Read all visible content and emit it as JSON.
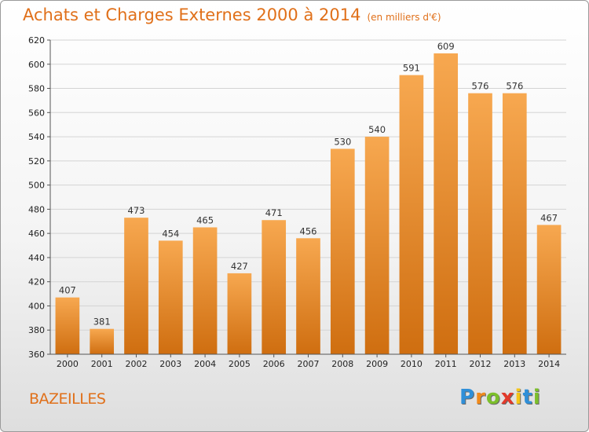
{
  "header": {
    "title": "Achats et Charges Externes 2000 à 2014",
    "subtitle": "(en milliers d'€)"
  },
  "footer": {
    "city": "BAZEILLES",
    "logo_letters": [
      {
        "ch": "P",
        "color": "#2f8fd8"
      },
      {
        "ch": "r",
        "color": "#f08a1c"
      },
      {
        "ch": "o",
        "color": "#7cbf2b"
      },
      {
        "ch": "x",
        "color": "#e23a2b"
      },
      {
        "ch": "i",
        "color": "#f5c518"
      },
      {
        "ch": "t",
        "color": "#2f8fd8"
      },
      {
        "ch": "i",
        "color": "#7cbf2b"
      }
    ]
  },
  "chart_data": {
    "type": "bar",
    "title": "Achats et Charges Externes 2000 à 2014",
    "subtitle": "(en milliers d'€)",
    "categories": [
      "2000",
      "2001",
      "2002",
      "2003",
      "2004",
      "2005",
      "2006",
      "2007",
      "2008",
      "2009",
      "2010",
      "2011",
      "2012",
      "2013",
      "2014"
    ],
    "values": [
      407,
      381,
      473,
      454,
      465,
      427,
      471,
      456,
      530,
      540,
      591,
      609,
      576,
      576,
      467
    ],
    "ylim": [
      360,
      620
    ],
    "yticks": [
      360,
      380,
      400,
      420,
      440,
      460,
      480,
      500,
      520,
      540,
      560,
      580,
      600,
      620
    ],
    "grid": true,
    "bar_color_top": "#f7a850",
    "bar_color_bottom": "#cf6e10"
  }
}
